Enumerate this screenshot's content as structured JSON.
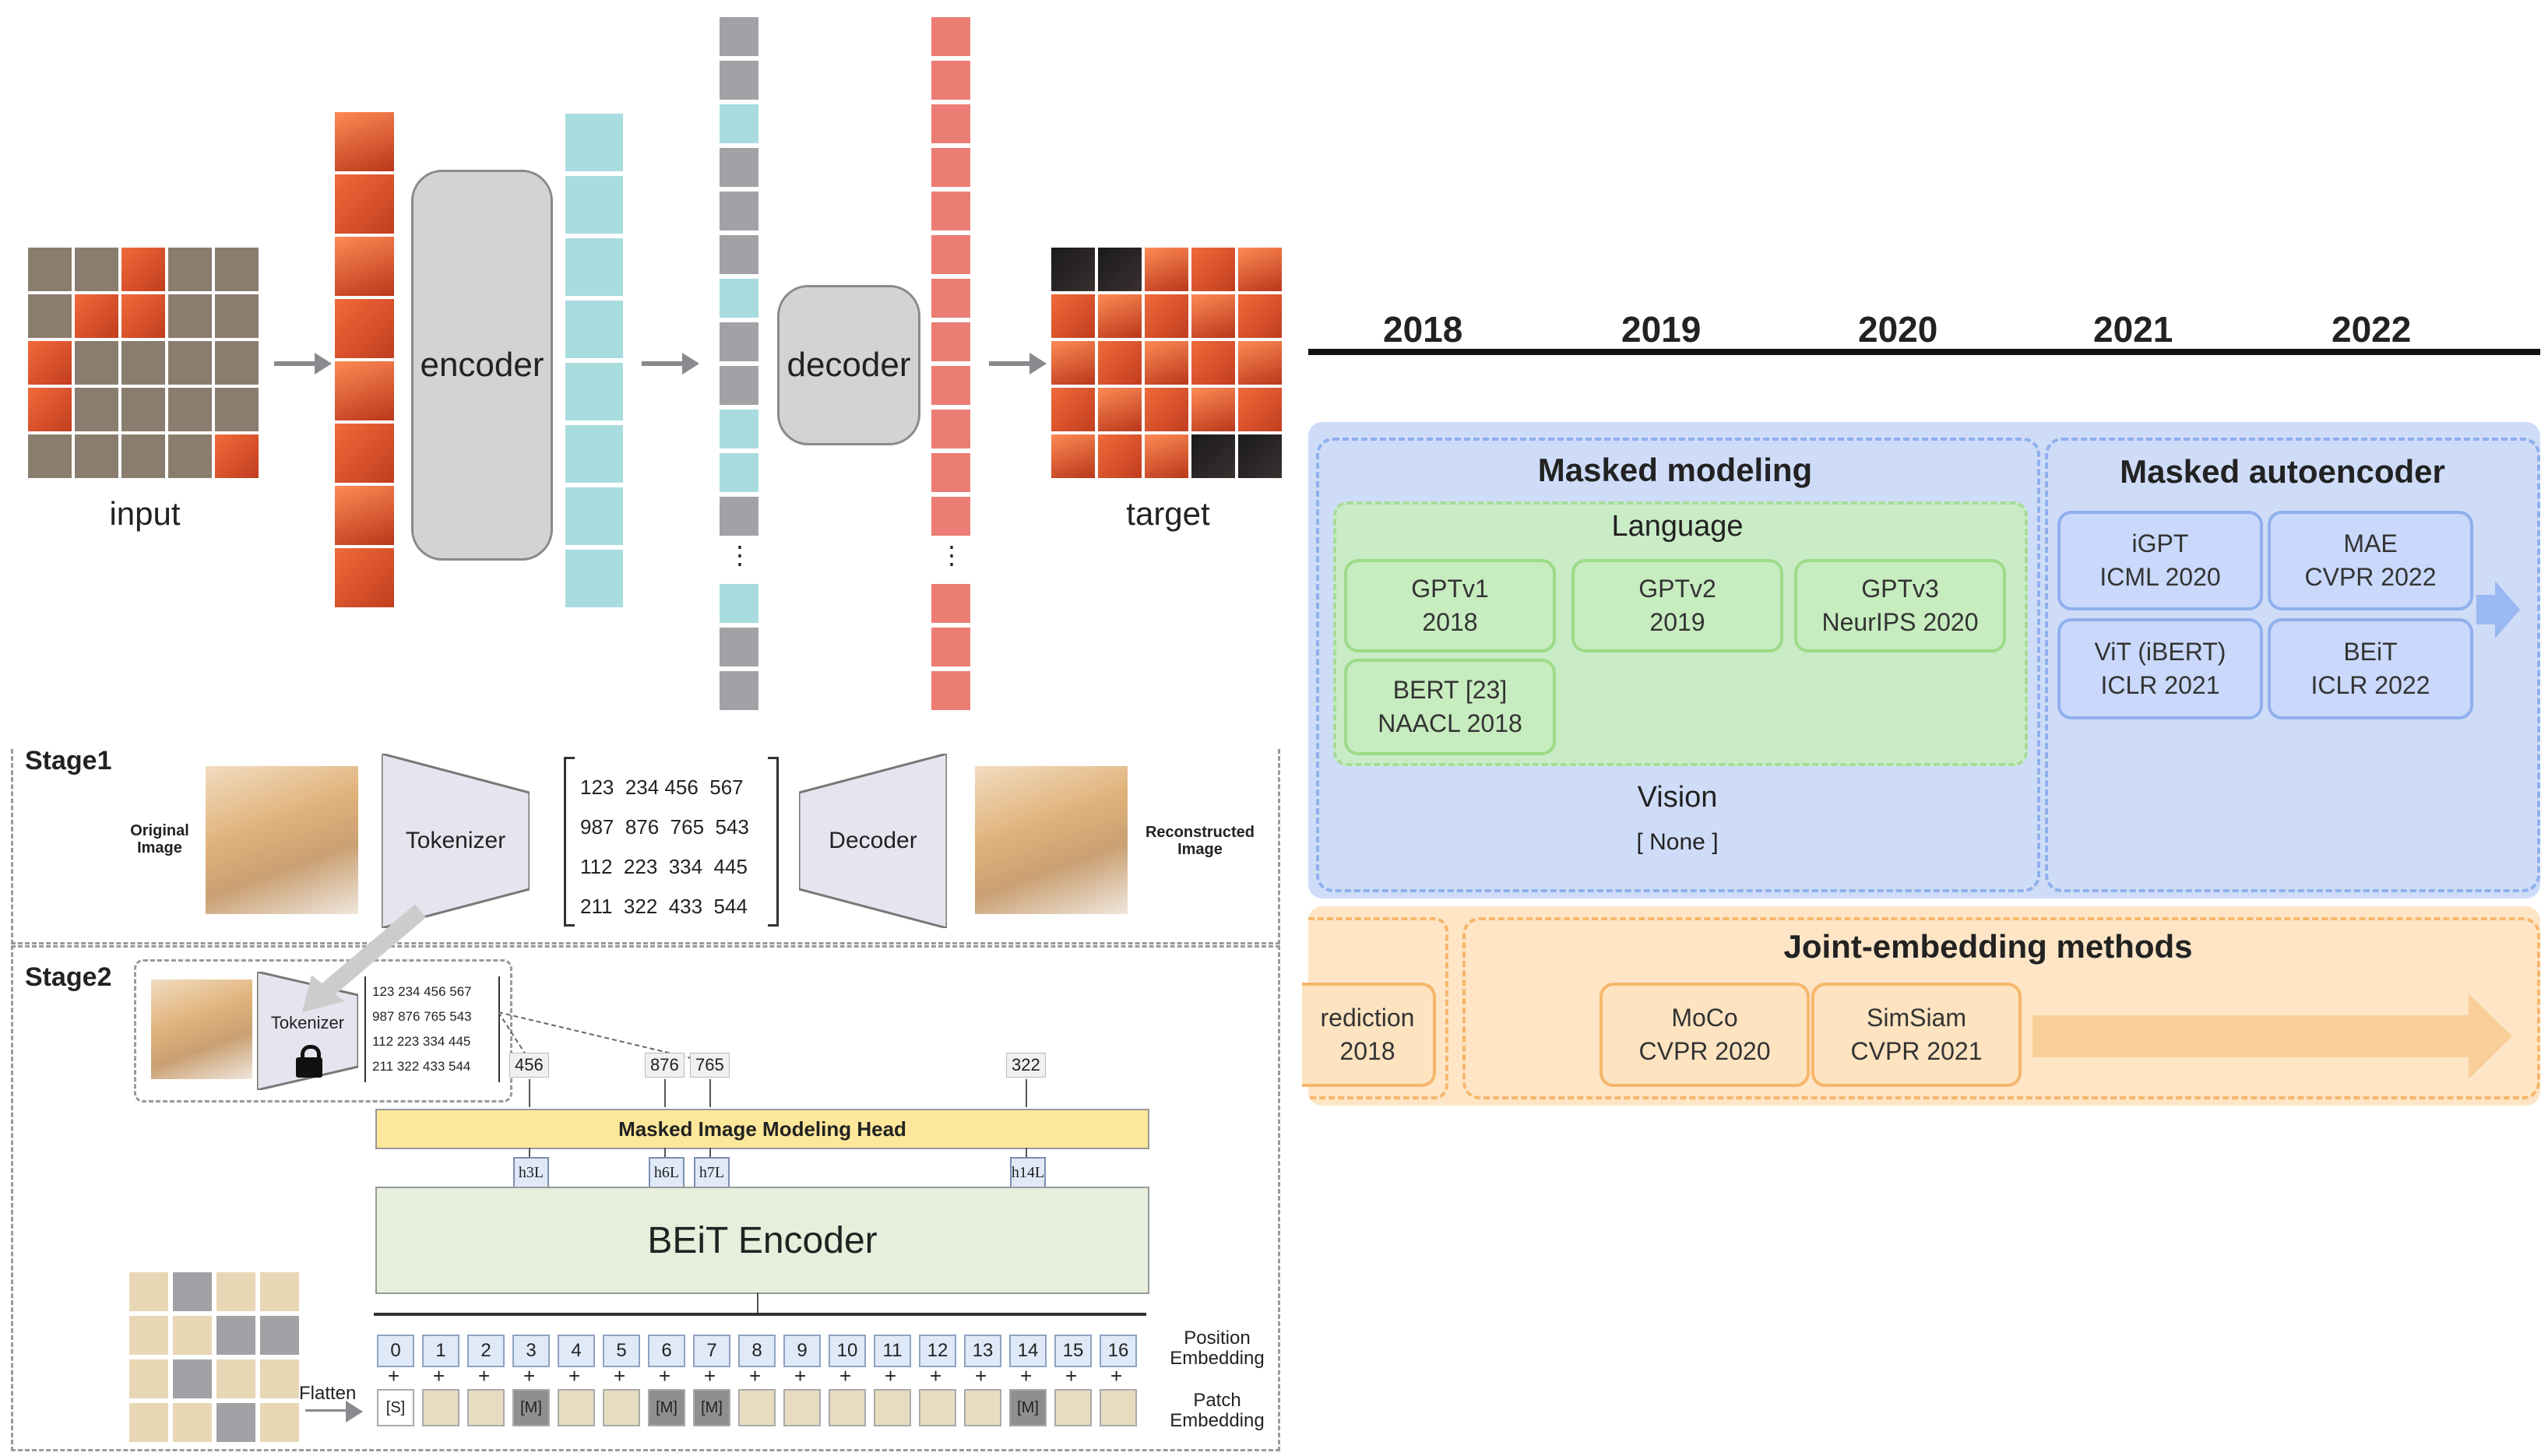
{
  "mae": {
    "input_label": "input",
    "encoder_label": "encoder",
    "decoder_label": "decoder",
    "target_label": "target",
    "ellipsis": "⋮"
  },
  "beit": {
    "stage1": "Stage1",
    "stage2": "Stage2",
    "original_image": "Original Image",
    "reconstructed_image": "Reconstructed Image",
    "tokenizer": "Tokenizer",
    "decoder": "Decoder",
    "matrix_rows": [
      "123  234 456  567",
      "987  876  765  543",
      "112  223  334  445",
      "211  322  433  544"
    ],
    "small_rows": [
      "123 234 456 567",
      "987 876 765 543",
      "112 223 334 445",
      "211 322 433 544"
    ],
    "pred_tokens": [
      "456",
      "876",
      "765",
      "322"
    ],
    "mim_head": "Masked Image Modeling Head",
    "encoder": "BEiT Encoder",
    "h_labels": [
      "h3L",
      "h6L",
      "h7L",
      "h14L"
    ],
    "positions": [
      "0",
      "1",
      "2",
      "3",
      "4",
      "5",
      "6",
      "7",
      "8",
      "9",
      "10",
      "11",
      "12",
      "13",
      "14",
      "15",
      "16"
    ],
    "position_embedding": "Position Embedding",
    "patch_embedding": "Patch Embedding",
    "flatten": "Flatten",
    "s_token": "[S]",
    "m_token": "[M]",
    "plus": "+"
  },
  "timeline": {
    "years": [
      "2018",
      "2019",
      "2020",
      "2021",
      "2022"
    ],
    "masked_modeling": "Masked modeling",
    "language": "Language",
    "vision": "Vision",
    "none": "[ None ]",
    "masked_autoencoder": "Masked autoencoder",
    "joint_embedding": "Joint-embedding methods",
    "green": [
      {
        "l1": "GPTv1",
        "l2": "2018"
      },
      {
        "l1": "GPTv2",
        "l2": "2019"
      },
      {
        "l1": "GPTv3",
        "l2": "NeurIPS 2020"
      },
      {
        "l1": "BERT [23]",
        "l2": "NAACL 2018"
      }
    ],
    "blue": [
      {
        "l1": "iGPT",
        "l2": "ICML 2020"
      },
      {
        "l1": "MAE",
        "l2": "CVPR 2022"
      },
      {
        "l1": "ViT (iBERT)",
        "l2": "ICLR 2021"
      },
      {
        "l1": "BEiT",
        "l2": "ICLR 2022"
      }
    ],
    "orange": [
      {
        "l1": "rediction",
        "l2": "2018"
      },
      {
        "l1": "MoCo",
        "l2": "CVPR 2020"
      },
      {
        "l1": "SimSiam",
        "l2": "CVPR 2021"
      }
    ],
    "colors": {
      "green_fill": "#c7ecbf",
      "blue_fill": "#c9d8fb",
      "orange_fill": "#fde3c0"
    }
  }
}
